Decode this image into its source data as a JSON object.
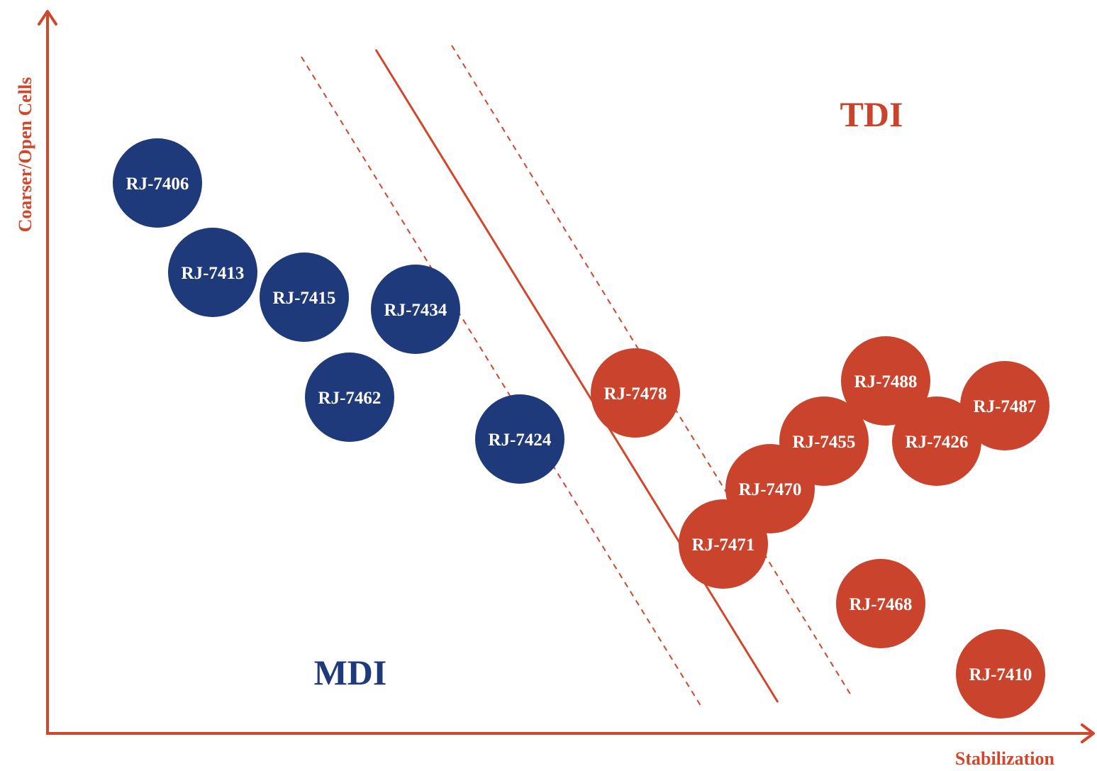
{
  "axes": {
    "y_label": "Coarser/Open Cells",
    "x_label": "Stabilization"
  },
  "regions": {
    "mdi": {
      "label": "MDI",
      "color": "#1f3a7a"
    },
    "tdi": {
      "label": "TDI",
      "color": "#c9432d"
    }
  },
  "bubbles": [
    {
      "label": "RJ-7406",
      "group": "mdi"
    },
    {
      "label": "RJ-7413",
      "group": "mdi"
    },
    {
      "label": "RJ-7415",
      "group": "mdi"
    },
    {
      "label": "RJ-7434",
      "group": "mdi"
    },
    {
      "label": "RJ-7462",
      "group": "mdi"
    },
    {
      "label": "RJ-7424",
      "group": "mdi"
    },
    {
      "label": "RJ-7478",
      "group": "tdi"
    },
    {
      "label": "RJ-7488",
      "group": "tdi"
    },
    {
      "label": "RJ-7487",
      "group": "tdi"
    },
    {
      "label": "RJ-7455",
      "group": "tdi"
    },
    {
      "label": "RJ-7426",
      "group": "tdi"
    },
    {
      "label": "RJ-7470",
      "group": "tdi"
    },
    {
      "label": "RJ-7471",
      "group": "tdi"
    },
    {
      "label": "RJ-7468",
      "group": "tdi"
    },
    {
      "label": "RJ-7410",
      "group": "tdi"
    }
  ]
}
